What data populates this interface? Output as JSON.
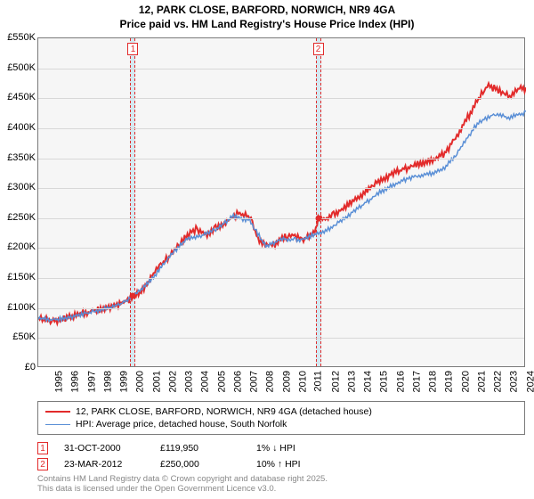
{
  "title": {
    "line1": "12, PARK CLOSE, BARFORD, NORWICH, NR9 4GA",
    "line2": "Price paid vs. HM Land Registry's House Price Index (HPI)"
  },
  "chart": {
    "type": "line",
    "background_color": "#f6f6f6",
    "grid_color": "#d8d8d8",
    "border_color": "#7a7a7a",
    "x": {
      "min": 1995,
      "max": 2025,
      "ticks": [
        1995,
        1996,
        1997,
        1998,
        1999,
        2000,
        2001,
        2002,
        2003,
        2004,
        2005,
        2006,
        2007,
        2008,
        2009,
        2010,
        2011,
        2012,
        2013,
        2014,
        2015,
        2016,
        2017,
        2018,
        2019,
        2020,
        2021,
        2022,
        2023,
        2024
      ]
    },
    "y": {
      "min": 0,
      "max": 550000,
      "ticks": [
        0,
        50000,
        100000,
        150000,
        200000,
        250000,
        300000,
        350000,
        400000,
        450000,
        500000,
        550000
      ],
      "tick_labels": [
        "£0",
        "£50K",
        "£100K",
        "£150K",
        "£200K",
        "£250K",
        "£300K",
        "£350K",
        "£400K",
        "£450K",
        "£500K",
        "£550K"
      ]
    },
    "marker_band_color": "#d4e8f0",
    "marker_dash_color": "#e22b2b",
    "series": [
      {
        "name": "12, PARK CLOSE, BARFORD, NORWICH, NR9 4GA (detached house)",
        "color": "#e22b2b",
        "width": 2,
        "points": [
          [
            1995,
            85000
          ],
          [
            1996,
            82000
          ],
          [
            1997,
            88000
          ],
          [
            1998,
            95000
          ],
          [
            1999,
            102000
          ],
          [
            2000,
            110000
          ],
          [
            2000.83,
            120000
          ],
          [
            2001.5,
            135000
          ],
          [
            2002,
            158000
          ],
          [
            2002.7,
            180000
          ],
          [
            2003.3,
            195000
          ],
          [
            2004,
            220000
          ],
          [
            2004.7,
            235000
          ],
          [
            2005.3,
            225000
          ],
          [
            2006,
            238000
          ],
          [
            2006.7,
            250000
          ],
          [
            2007.4,
            262000
          ],
          [
            2008,
            255000
          ],
          [
            2008.6,
            215000
          ],
          [
            2009.3,
            205000
          ],
          [
            2010,
            220000
          ],
          [
            2010.7,
            225000
          ],
          [
            2011.4,
            218000
          ],
          [
            2012,
            230000
          ],
          [
            2012.22,
            250000
          ],
          [
            2013,
            255000
          ],
          [
            2014,
            275000
          ],
          [
            2015,
            295000
          ],
          [
            2016,
            315000
          ],
          [
            2017,
            330000
          ],
          [
            2018,
            340000
          ],
          [
            2019,
            348000
          ],
          [
            2020,
            360000
          ],
          [
            2021,
            400000
          ],
          [
            2022,
            450000
          ],
          [
            2022.7,
            475000
          ],
          [
            2023.3,
            465000
          ],
          [
            2024,
            455000
          ],
          [
            2024.6,
            470000
          ],
          [
            2025,
            468000
          ]
        ]
      },
      {
        "name": "HPI: Average price, detached house, South Norfolk",
        "color": "#5a8fd6",
        "width": 1.5,
        "points": [
          [
            1995,
            84000
          ],
          [
            1996,
            82000
          ],
          [
            1997,
            87000
          ],
          [
            1998,
            94000
          ],
          [
            1999,
            100000
          ],
          [
            2000,
            108000
          ],
          [
            2001,
            125000
          ],
          [
            2002,
            150000
          ],
          [
            2003,
            185000
          ],
          [
            2004,
            215000
          ],
          [
            2005,
            222000
          ],
          [
            2006,
            235000
          ],
          [
            2007,
            255000
          ],
          [
            2008,
            248000
          ],
          [
            2009,
            205000
          ],
          [
            2010,
            218000
          ],
          [
            2011,
            215000
          ],
          [
            2012,
            225000
          ],
          [
            2013,
            235000
          ],
          [
            2014,
            255000
          ],
          [
            2015,
            275000
          ],
          [
            2016,
            295000
          ],
          [
            2017,
            310000
          ],
          [
            2018,
            320000
          ],
          [
            2019,
            325000
          ],
          [
            2020,
            335000
          ],
          [
            2021,
            370000
          ],
          [
            2022,
            410000
          ],
          [
            2023,
            425000
          ],
          [
            2024,
            420000
          ],
          [
            2025,
            428000
          ]
        ]
      }
    ],
    "sale_markers": [
      {
        "n": "1",
        "year": 2000.83,
        "price": 119950
      },
      {
        "n": "2",
        "year": 2012.22,
        "price": 250000
      }
    ]
  },
  "legend": {
    "items": [
      {
        "label": "12, PARK CLOSE, BARFORD, NORWICH, NR9 4GA (detached house)",
        "color": "#e22b2b",
        "width": 2
      },
      {
        "label": "HPI: Average price, detached house, South Norfolk",
        "color": "#5a8fd6",
        "width": 1.5
      }
    ]
  },
  "markers_table": [
    {
      "n": "1",
      "date": "31-OCT-2000",
      "price": "£119,950",
      "delta": "1% ↓ HPI"
    },
    {
      "n": "2",
      "date": "23-MAR-2012",
      "price": "£250,000",
      "delta": "10% ↑ HPI"
    }
  ],
  "footer": {
    "line1": "Contains HM Land Registry data © Crown copyright and database right 2025.",
    "line2": "This data is licensed under the Open Government Licence v3.0."
  }
}
